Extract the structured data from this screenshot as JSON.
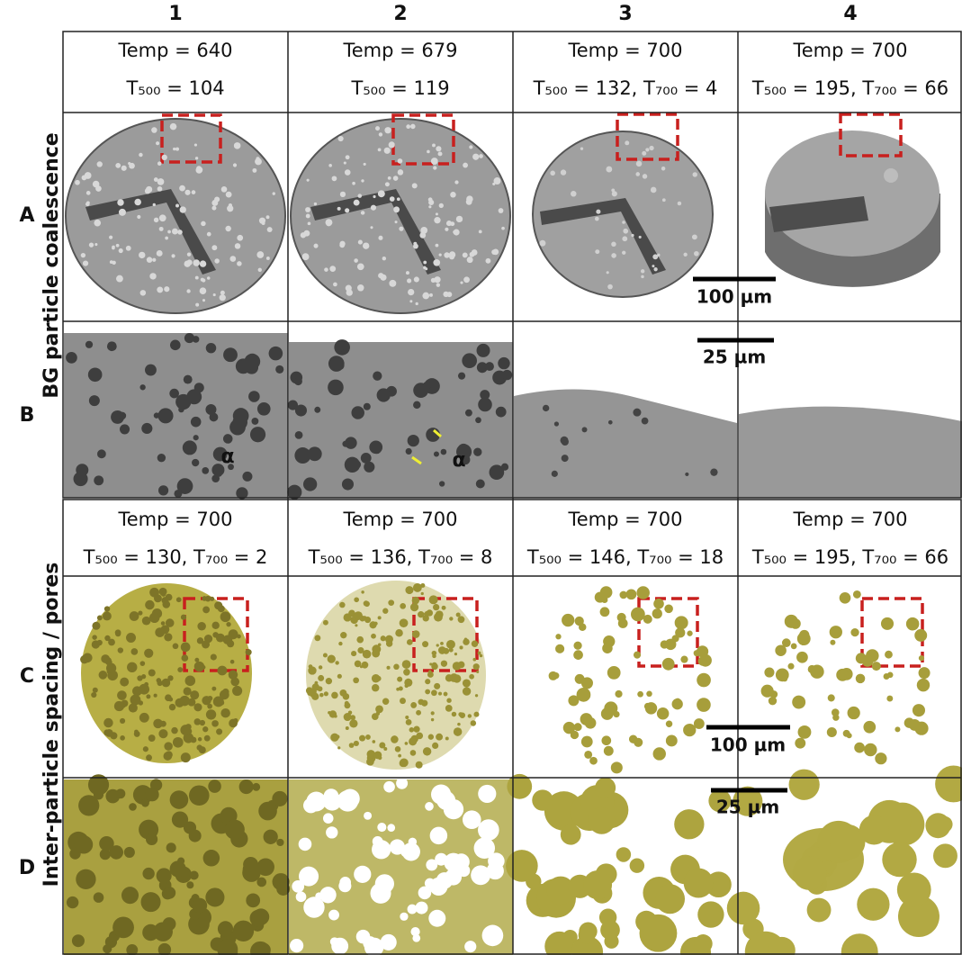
{
  "columns": [
    "1",
    "2",
    "3",
    "4"
  ],
  "rows": [
    "A",
    "B",
    "C",
    "D"
  ],
  "row_groups": [
    "BG particle coalescence",
    "Inter-particle spacing / pores"
  ],
  "conditions_top": [
    {
      "temp": "Temp = 640",
      "times": "T₅₀₀ = 104"
    },
    {
      "temp": "Temp = 679",
      "times": "T₅₀₀ = 119"
    },
    {
      "temp": "Temp = 700",
      "times": "T₅₀₀ = 132, T₇₀₀ = 4"
    },
    {
      "temp": "Temp = 700",
      "times": "T₅₀₀ = 195, T₇₀₀ = 66"
    }
  ],
  "conditions_bottom": [
    {
      "temp": "Temp = 700",
      "times": "T₅₀₀ = 130, T₇₀₀ = 2"
    },
    {
      "temp": "Temp = 700",
      "times": "T₅₀₀ = 136, T₇₀₀ = 8"
    },
    {
      "temp": "Temp = 700",
      "times": "T₅₀₀ = 146, T₇₀₀ = 18"
    },
    {
      "temp": "Temp = 700",
      "times": "T₅₀₀ = 195, T₇₀₀ = 66"
    }
  ],
  "scale_bars": {
    "top": [
      "100 µm",
      "25 µm"
    ],
    "bottom": [
      "100 µm",
      "25 µm"
    ]
  },
  "annotations": [
    "α",
    "α"
  ]
}
